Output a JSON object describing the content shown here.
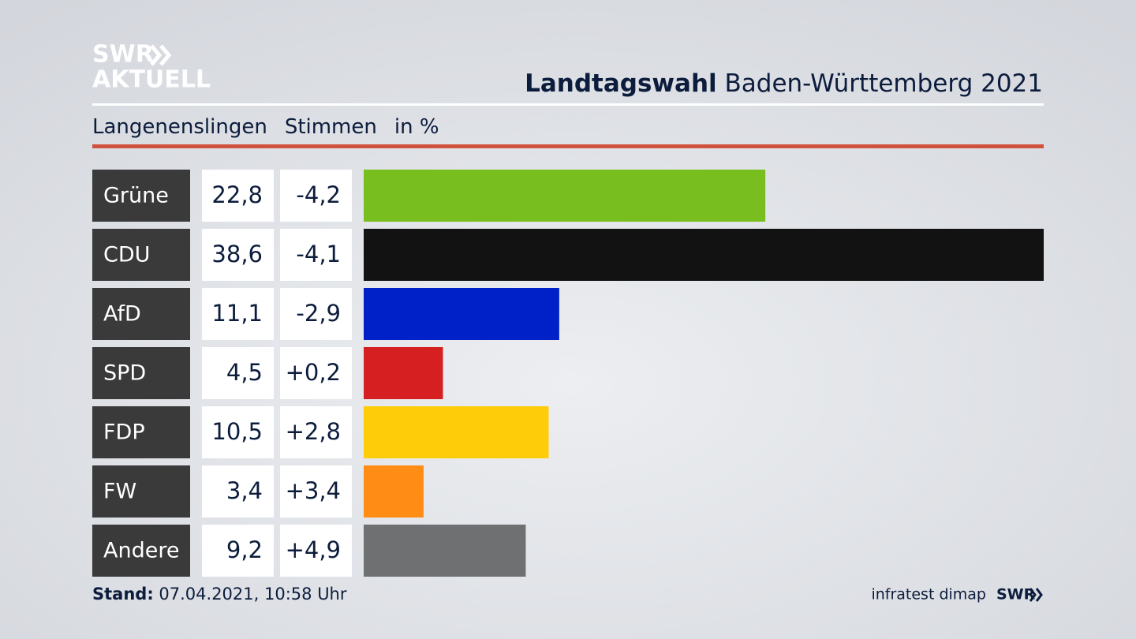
{
  "chart_data": {
    "type": "bar",
    "logo": [
      "SWR",
      "AKTUELL"
    ],
    "title_bold": "Landtagswahl",
    "title": "Baden-Württemberg 2021",
    "subtitle": [
      "Langenenslingen",
      "Stimmen",
      "in %"
    ],
    "categories": [
      "Grüne",
      "CDU",
      "AfD",
      "SPD",
      "FDP",
      "FW",
      "Andere"
    ],
    "values": [
      22.8,
      38.6,
      11.1,
      4.5,
      10.5,
      3.4,
      9.2
    ],
    "value_labels": [
      "22,8",
      "38,6",
      "11,1",
      "4,5",
      "10,5",
      "3,4",
      "9,2"
    ],
    "changes": [
      -4.2,
      -4.1,
      -2.9,
      0.2,
      2.8,
      3.4,
      4.9
    ],
    "change_labels": [
      "-4,2",
      "-4,1",
      "-2,9",
      "+0,2",
      "+2,8",
      "+3,4",
      "+4,9"
    ],
    "colors": [
      "#78be1e",
      "#121212",
      "#0021c8",
      "#d51f20",
      "#ffcc0a",
      "#ff8c14",
      "#6f7072"
    ],
    "footer_label": "Stand:",
    "footer_date": "07.04.2021, 10:58 Uhr",
    "source": "infratest dimap",
    "brand": "SWR"
  }
}
